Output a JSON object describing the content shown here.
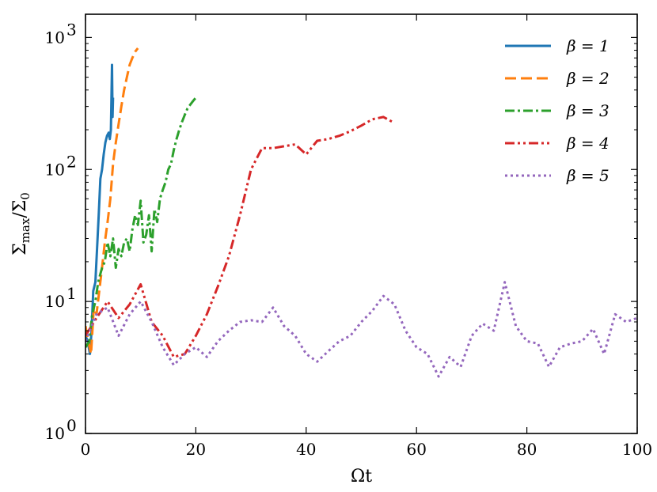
{
  "chart_data": {
    "type": "line",
    "xlabel": "Ωt",
    "ylabel_parts": {
      "sigma": "Σ",
      "sub_num": "max",
      "slash": "/",
      "sub_den": "0"
    },
    "xlim": [
      0,
      100
    ],
    "ylim": [
      1,
      1500
    ],
    "yscale": "log",
    "grid": false,
    "legend_position": "top-right",
    "xticks": [
      0,
      20,
      40,
      60,
      80,
      100
    ],
    "yticks": [
      {
        "value": 1,
        "base": "10",
        "exp": "0"
      },
      {
        "value": 10,
        "base": "10",
        "exp": "1"
      },
      {
        "value": 100,
        "base": "10",
        "exp": "2"
      },
      {
        "value": 1000,
        "base": "10",
        "exp": "3"
      }
    ],
    "series": [
      {
        "name": "β = 1",
        "color": "#1f77b4",
        "dash": "",
        "x": [
          0.0,
          0.4,
          0.8,
          1.1,
          1.4,
          1.8,
          2.1,
          2.4,
          2.7,
          3.0,
          3.3,
          3.6,
          3.9,
          4.2,
          4.4,
          4.6,
          4.8,
          4.9,
          5.0
        ],
        "y": [
          5.5,
          5.0,
          4.0,
          6.0,
          12.0,
          14.0,
          25.0,
          45.0,
          85.0,
          100.0,
          130.0,
          160.0,
          180.0,
          190.0,
          170.0,
          200.0,
          620.0,
          250.0,
          350.0
        ]
      },
      {
        "name": "β = 2",
        "color": "#ff7f0e",
        "dash": "14,6",
        "x": [
          0.0,
          0.5,
          1.0,
          1.5,
          2.0,
          2.5,
          3.0,
          3.5,
          4.0,
          4.5,
          5.0,
          5.5,
          6.0,
          6.5,
          7.0,
          7.5,
          8.0,
          8.5,
          9.0,
          9.5
        ],
        "y": [
          6.5,
          5.0,
          4.0,
          9.0,
          8.0,
          12.0,
          18.0,
          28.0,
          40.0,
          60.0,
          110.0,
          160.0,
          220.0,
          300.0,
          400.0,
          500.0,
          620.0,
          700.0,
          780.0,
          830.0
        ]
      },
      {
        "name": "β = 3",
        "color": "#2ca02c",
        "dash": "12,4,3,4",
        "x": [
          0.0,
          0.7,
          1.2,
          1.8,
          2.3,
          3.0,
          3.5,
          4.0,
          4.5,
          5.0,
          5.5,
          6.0,
          6.5,
          7.0,
          7.5,
          8.0,
          8.5,
          9.0,
          9.5,
          10.0,
          10.5,
          11.0,
          11.5,
          12.0,
          12.5,
          13.0,
          13.5,
          14.0,
          14.5,
          15.0,
          15.5,
          16.0,
          16.5,
          17.0,
          17.5,
          18.0,
          18.5,
          19.0,
          19.5,
          20.0
        ],
        "y": [
          4.5,
          5.0,
          8.0,
          10.0,
          14.0,
          18.0,
          20.0,
          28.0,
          22.0,
          30.0,
          18.0,
          25.0,
          22.0,
          28.0,
          30.0,
          24.0,
          35.0,
          45.0,
          38.0,
          58.0,
          28.0,
          32.0,
          45.0,
          24.0,
          50.0,
          40.0,
          60.0,
          70.0,
          80.0,
          100.0,
          110.0,
          140.0,
          170.0,
          200.0,
          230.0,
          260.0,
          290.0,
          310.0,
          330.0,
          350.0
        ]
      },
      {
        "name": "β = 4",
        "color": "#d62728",
        "dash": "12,4,3,4,3,4",
        "x": [
          0.0,
          2.0,
          4.0,
          6.0,
          8.0,
          10.0,
          12.0,
          14.0,
          16.0,
          18.0,
          20.0,
          22.0,
          24.0,
          26.0,
          28.0,
          30.0,
          32.0,
          34.0,
          36.0,
          38.0,
          40.0,
          42.0,
          44.0,
          46.0,
          48.0,
          50.0,
          52.0,
          54.0,
          56.0
        ],
        "y": [
          5.5,
          7.5,
          10.0,
          7.5,
          9.5,
          13.5,
          7.0,
          5.5,
          3.8,
          4.0,
          5.5,
          8.0,
          13.0,
          22.0,
          45.0,
          100.0,
          145.0,
          145.0,
          150.0,
          155.0,
          130.0,
          165.0,
          170.0,
          180.0,
          195.0,
          215.0,
          240.0,
          250.0,
          225.0
        ]
      },
      {
        "name": "β = 5",
        "color": "#9467bd",
        "dash": "3,4",
        "x": [
          0.0,
          2.0,
          4.0,
          6.0,
          8.0,
          10.0,
          12.0,
          14.0,
          16.0,
          18.0,
          20.0,
          22.0,
          24.0,
          26.0,
          28.0,
          30.0,
          32.0,
          34.0,
          36.0,
          38.0,
          40.0,
          42.0,
          44.0,
          46.0,
          48.0,
          50.0,
          52.0,
          54.0,
          56.0,
          58.0,
          60.0,
          62.0,
          64.0,
          66.0,
          68.0,
          70.0,
          72.0,
          74.0,
          76.0,
          78.0,
          80.0,
          82.0,
          84.0,
          86.0,
          88.0,
          90.0,
          92.0,
          94.0,
          96.0,
          98.0,
          100.0
        ],
        "y": [
          5.0,
          8.0,
          9.0,
          5.5,
          8.0,
          10.0,
          7.0,
          4.5,
          3.3,
          4.0,
          4.5,
          3.8,
          5.0,
          6.0,
          7.0,
          7.2,
          7.0,
          9.0,
          6.5,
          5.5,
          4.0,
          3.5,
          4.2,
          5.0,
          5.5,
          7.0,
          8.5,
          11.0,
          9.5,
          6.0,
          4.5,
          4.0,
          2.7,
          3.8,
          3.2,
          5.5,
          6.8,
          6.0,
          14.0,
          6.5,
          5.0,
          4.8,
          3.2,
          4.5,
          4.8,
          5.0,
          6.2,
          4.0,
          8.0,
          7.0,
          7.5
        ]
      }
    ]
  }
}
